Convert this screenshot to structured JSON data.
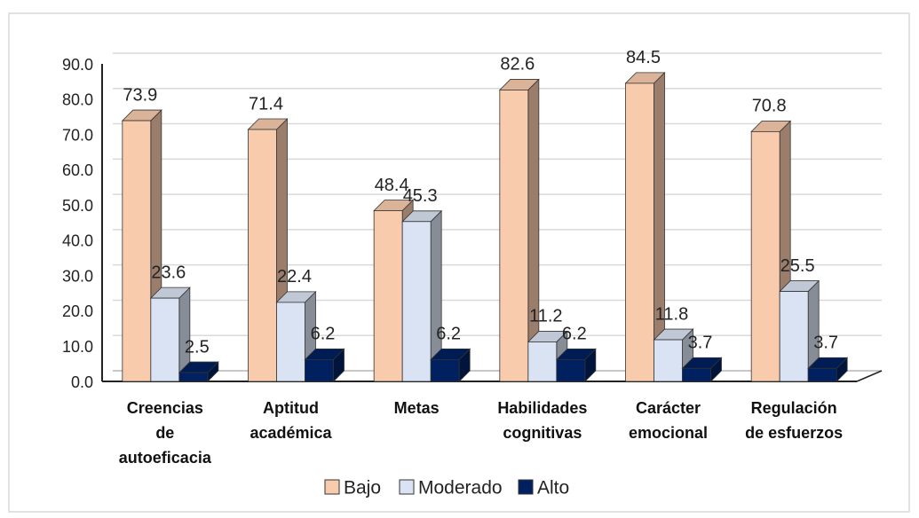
{
  "chart_data": {
    "type": "bar3d",
    "categories": [
      "Creencias de autoeficacia",
      "Aptitud académica",
      "Metas",
      "Habilidades cognitivas",
      "Carácter emocional",
      "Regulación de esfuerzos"
    ],
    "series": [
      {
        "name": "Bajo",
        "color": "#f8cbad",
        "values": [
          73.9,
          71.4,
          48.4,
          82.6,
          84.5,
          70.8
        ]
      },
      {
        "name": "Moderado",
        "color": "#dae3f3",
        "values": [
          23.6,
          22.4,
          45.3,
          11.2,
          11.8,
          25.5
        ]
      },
      {
        "name": "Alto",
        "color": "#002060",
        "values": [
          2.5,
          6.2,
          6.2,
          6.2,
          3.7,
          3.7
        ]
      }
    ],
    "ylim": [
      0,
      90
    ],
    "yticks": [
      {
        "value": 0,
        "label": "0.0"
      },
      {
        "value": 10,
        "label": "10.0"
      },
      {
        "value": 20,
        "label": "20.0"
      },
      {
        "value": 30,
        "label": "30.0"
      },
      {
        "value": 40,
        "label": "40.0"
      },
      {
        "value": 50,
        "label": "50.0"
      },
      {
        "value": 60,
        "label": "60.0"
      },
      {
        "value": 70,
        "label": "70.0"
      },
      {
        "value": 80,
        "label": "80.0"
      },
      {
        "value": 90,
        "label": "90.0"
      }
    ],
    "grid": true,
    "legend": "bottom"
  }
}
